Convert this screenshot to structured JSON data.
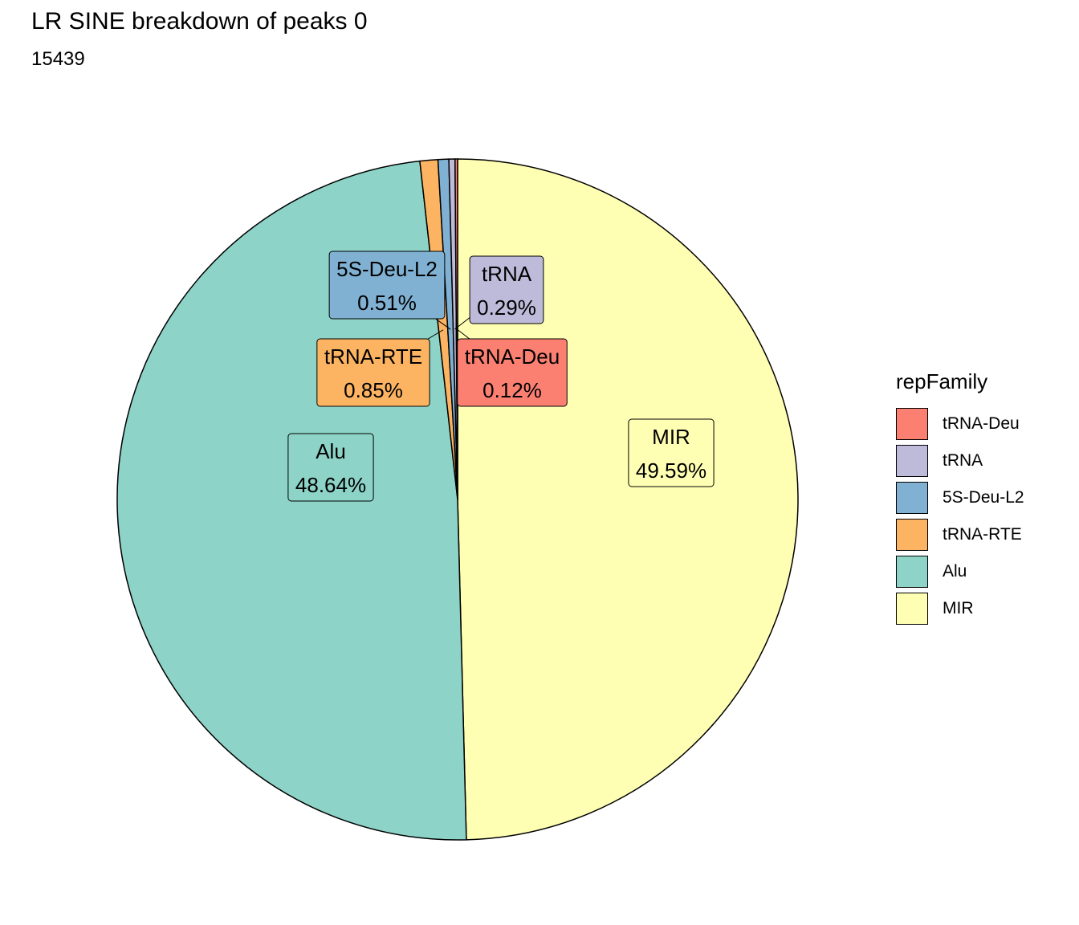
{
  "chart_data": {
    "type": "pie",
    "title": "LR SINE breakdown of peaks 0",
    "subtitle": "15439",
    "legend_title": "repFamily",
    "legend_position": "right",
    "slices": [
      {
        "name": "tRNA-Deu",
        "value": 0.12,
        "label": "0.12%",
        "color": "#FB8072"
      },
      {
        "name": "tRNA",
        "value": 0.29,
        "label": "0.29%",
        "color": "#BEBADA"
      },
      {
        "name": "5S-Deu-L2",
        "value": 0.51,
        "label": "0.51%",
        "color": "#80B1D3"
      },
      {
        "name": "tRNA-RTE",
        "value": 0.85,
        "label": "0.85%",
        "color": "#FDB462"
      },
      {
        "name": "Alu",
        "value": 48.64,
        "label": "48.64%",
        "color": "#8DD3C7"
      },
      {
        "name": "MIR",
        "value": 49.59,
        "label": "49.59%",
        "color": "#FFFFB3"
      }
    ]
  }
}
